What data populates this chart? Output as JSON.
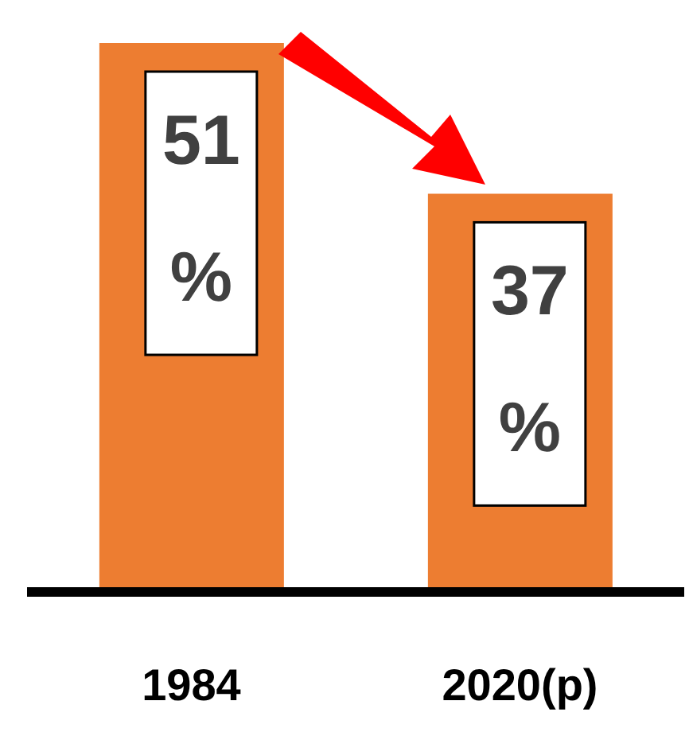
{
  "chart_data": {
    "type": "bar",
    "categories": [
      "1984",
      "2020(p)"
    ],
    "values": [
      51,
      37
    ],
    "color": "#ed7d31",
    "value_labels": [
      "51 %",
      "37 %"
    ]
  }
}
